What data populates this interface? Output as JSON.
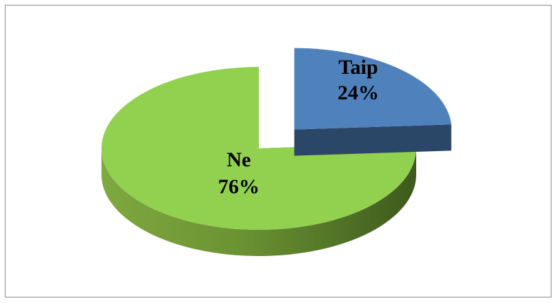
{
  "chart_data": {
    "type": "pie",
    "title": "",
    "slices": [
      {
        "label": "Taip",
        "value": 24,
        "percent_label": "24%",
        "color": "#4f81bd",
        "exploded": true
      },
      {
        "label": "Ne",
        "value": 76,
        "percent_label": "76%",
        "color": "#92d050",
        "exploded": false
      }
    ],
    "legend": "none",
    "style": "3d-exploded"
  }
}
